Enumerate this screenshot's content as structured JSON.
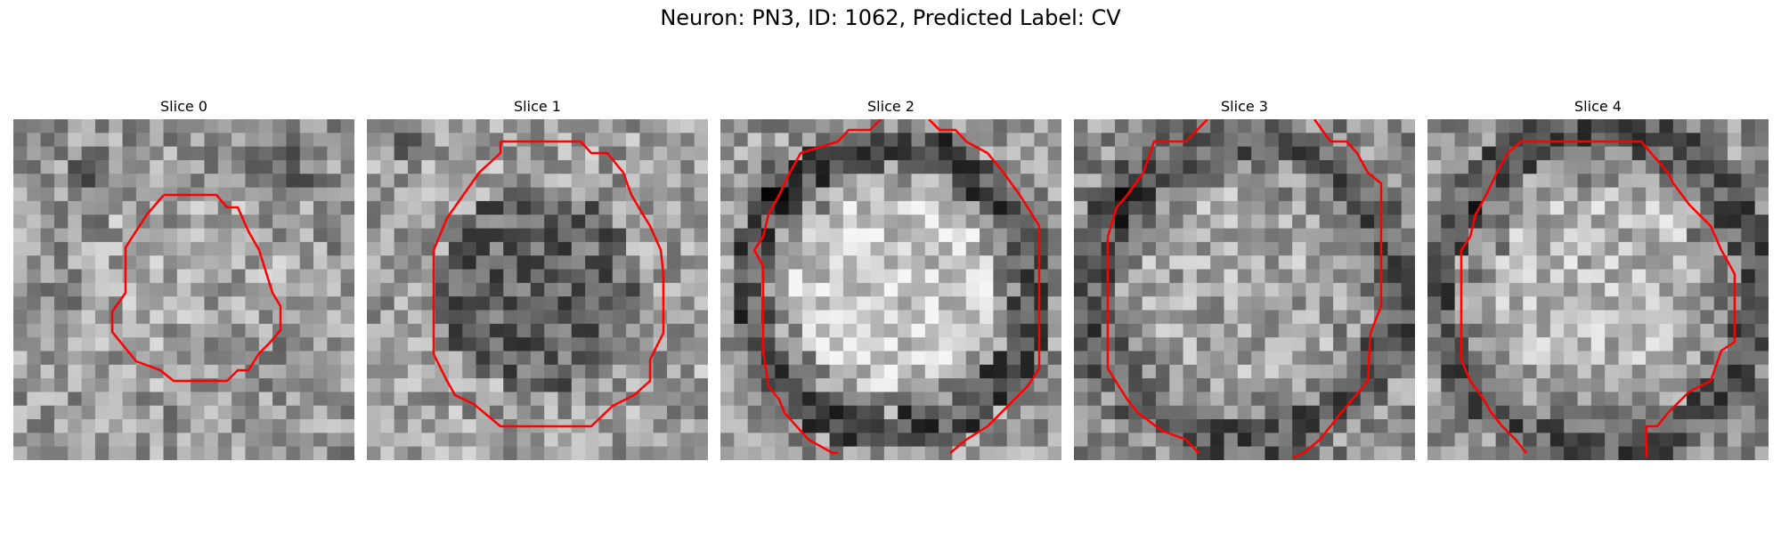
{
  "figure": {
    "title": "Neuron: PN3, ID: 1062, Predicted Label: CV"
  },
  "panels": [
    {
      "title": "Slice 0",
      "colormap": "grayscale",
      "contour_color": "#ff0000"
    },
    {
      "title": "Slice 1",
      "colormap": "grayscale",
      "contour_color": "#ff0000"
    },
    {
      "title": "Slice 2",
      "colormap": "grayscale",
      "contour_color": "#ff0000"
    },
    {
      "title": "Slice 3",
      "colormap": "grayscale",
      "contour_color": "#ff0000"
    },
    {
      "title": "Slice 4",
      "colormap": "grayscale",
      "contour_color": "#ff0000"
    }
  ]
}
